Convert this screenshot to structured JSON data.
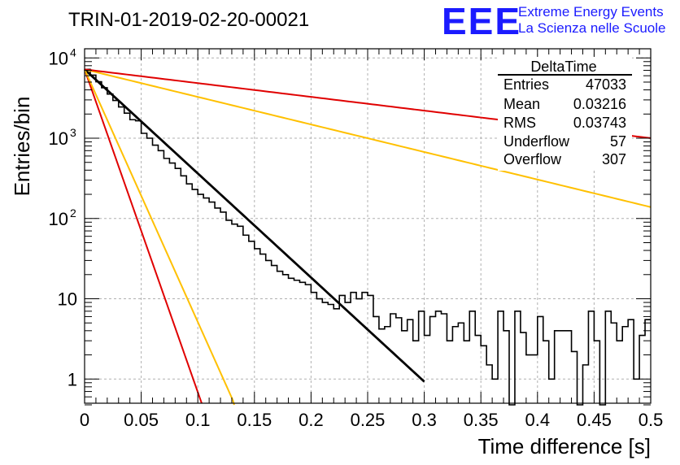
{
  "header": {
    "title": "TRIN-01-2019-02-20-00021",
    "logo_text": "EEE",
    "logo_line1": "Extreme Energy Events",
    "logo_line2": "La Scienza nelle Scuole",
    "logo_color": "#1b1bff"
  },
  "stats": {
    "title": "DeltaTime",
    "rows": [
      {
        "label": "Entries",
        "value": "47033"
      },
      {
        "label": "Mean",
        "value": "0.03216"
      },
      {
        "label": "RMS",
        "value": "0.03743"
      },
      {
        "label": "Underflow",
        "value": "57"
      },
      {
        "label": "Overflow",
        "value": "307"
      }
    ]
  },
  "chart_data": {
    "type": "line",
    "title": "TRIN-01-2019-02-20-00021",
    "xlabel": "Time difference [s]",
    "ylabel": "Entries/bin",
    "xlim": [
      0,
      0.5
    ],
    "ylim": [
      0.5,
      13000
    ],
    "yscale": "log",
    "grid": true,
    "x_ticks": [
      "0",
      "0.05",
      "0.1",
      "0.15",
      "0.2",
      "0.25",
      "0.3",
      "0.35",
      "0.4",
      "0.45",
      "0.5"
    ],
    "y_ticks": [
      {
        "value": 1,
        "label": "1"
      },
      {
        "value": 10,
        "label": "10"
      },
      {
        "value": 100,
        "label": "10",
        "exp": "2"
      },
      {
        "value": 1000,
        "label": "10",
        "exp": "3"
      },
      {
        "value": 10000,
        "label": "10",
        "exp": "4"
      }
    ],
    "histogram": {
      "color": "#000000",
      "bin_width": 0.005,
      "counts": [
        7200,
        6100,
        5050,
        4250,
        3550,
        2950,
        2450,
        2050,
        1700,
        1650,
        1150,
        1000,
        820,
        700,
        560,
        490,
        420,
        340,
        270,
        230,
        200,
        180,
        160,
        135,
        120,
        95,
        85,
        80,
        62,
        52,
        42,
        36,
        30,
        26,
        22,
        20,
        18,
        17,
        16,
        15,
        12,
        10,
        9,
        8.5,
        7.5,
        11,
        9,
        12,
        10,
        12,
        11,
        6,
        4.2,
        4.5,
        6.5,
        5.8,
        4,
        5.5,
        3,
        7,
        3.5,
        6,
        7,
        6.5,
        3,
        4.5,
        5,
        3,
        7,
        3.5,
        2.6,
        1.5,
        1,
        7,
        4,
        0.4,
        7,
        3.8,
        2,
        2,
        6,
        3,
        1,
        4,
        4,
        4,
        2.2,
        0.4,
        1.5,
        7,
        3,
        0.4,
        7,
        5,
        3,
        4.5,
        5.5,
        1,
        3.5,
        5.5
      ]
    },
    "curves": [
      {
        "color": "#000000",
        "A": 7200,
        "tau": 0.0335,
        "x_end": 0.3
      },
      {
        "color": "#e00000",
        "A": 7200,
        "tau": 0.0108,
        "x_end": 0.5
      },
      {
        "color": "#ffc000",
        "A": 7200,
        "tau": 0.0138,
        "x_end": 0.5
      },
      {
        "color": "#ffc000",
        "A": 7200,
        "tau": 0.1266,
        "x_end": 0.5
      },
      {
        "color": "#e00000",
        "A": 7200,
        "tau": 0.2535,
        "x_end": 0.5
      }
    ]
  }
}
